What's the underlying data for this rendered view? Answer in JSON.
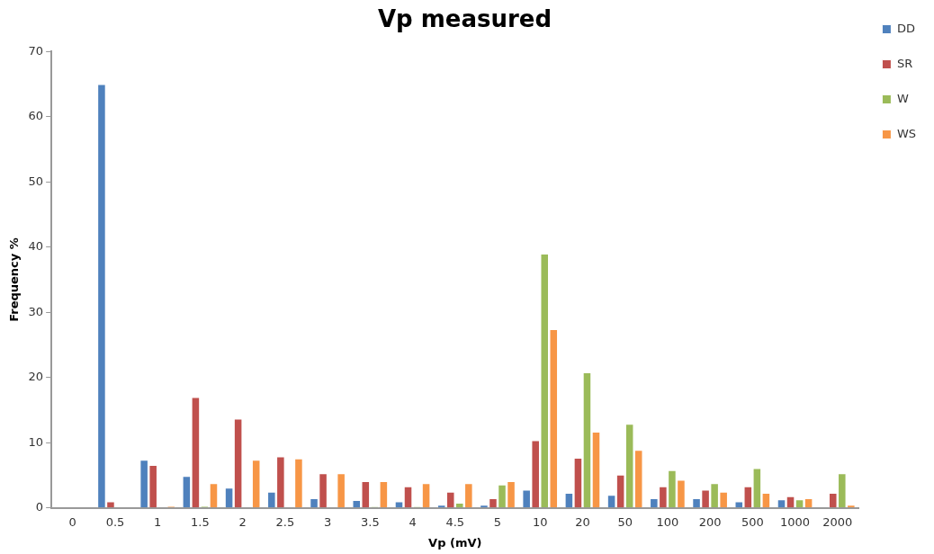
{
  "chart_data": {
    "type": "bar",
    "title": "Vp measured",
    "xlabel": "Vp (mV)",
    "ylabel": "Frequency %",
    "categories": [
      "0",
      "0.5",
      "1",
      "1.5",
      "2",
      "2.5",
      "3",
      "3.5",
      "4",
      "4.5",
      "5",
      "10",
      "20",
      "50",
      "100",
      "200",
      "500",
      "1000",
      "2000"
    ],
    "series": [
      {
        "name": "DD",
        "color": "#4f81bd",
        "values": [
          0,
          65,
          7.4,
          4.9,
          3.1,
          2.5,
          1.5,
          1.2,
          1.0,
          0.5,
          0.5,
          2.8,
          2.3,
          2.0,
          1.5,
          1.5,
          1.0,
          1.3,
          0
        ]
      },
      {
        "name": "SR",
        "color": "#c0504d",
        "values": [
          0,
          1.0,
          6.6,
          17.0,
          13.7,
          7.9,
          5.3,
          4.1,
          3.3,
          2.5,
          1.5,
          10.4,
          7.7,
          5.1,
          3.3,
          2.8,
          3.3,
          1.8,
          2.3
        ]
      },
      {
        "name": "W",
        "color": "#9bbb59",
        "values": [
          0,
          0,
          0,
          0.3,
          0,
          0,
          0,
          0.2,
          0.2,
          0.8,
          3.6,
          39.0,
          20.8,
          12.9,
          5.8,
          3.8,
          6.1,
          1.3,
          5.3
        ]
      },
      {
        "name": "WS",
        "color": "#f79646",
        "values": [
          0,
          0,
          0.3,
          3.8,
          7.4,
          7.6,
          5.3,
          4.1,
          3.8,
          3.8,
          4.1,
          27.4,
          11.7,
          8.9,
          4.3,
          2.5,
          2.3,
          1.5,
          0.5
        ]
      }
    ],
    "ylim": [
      0,
      70
    ],
    "yticks": [
      0,
      10,
      20,
      30,
      40,
      50,
      60,
      70
    ],
    "grid": false,
    "legend": "top right"
  }
}
